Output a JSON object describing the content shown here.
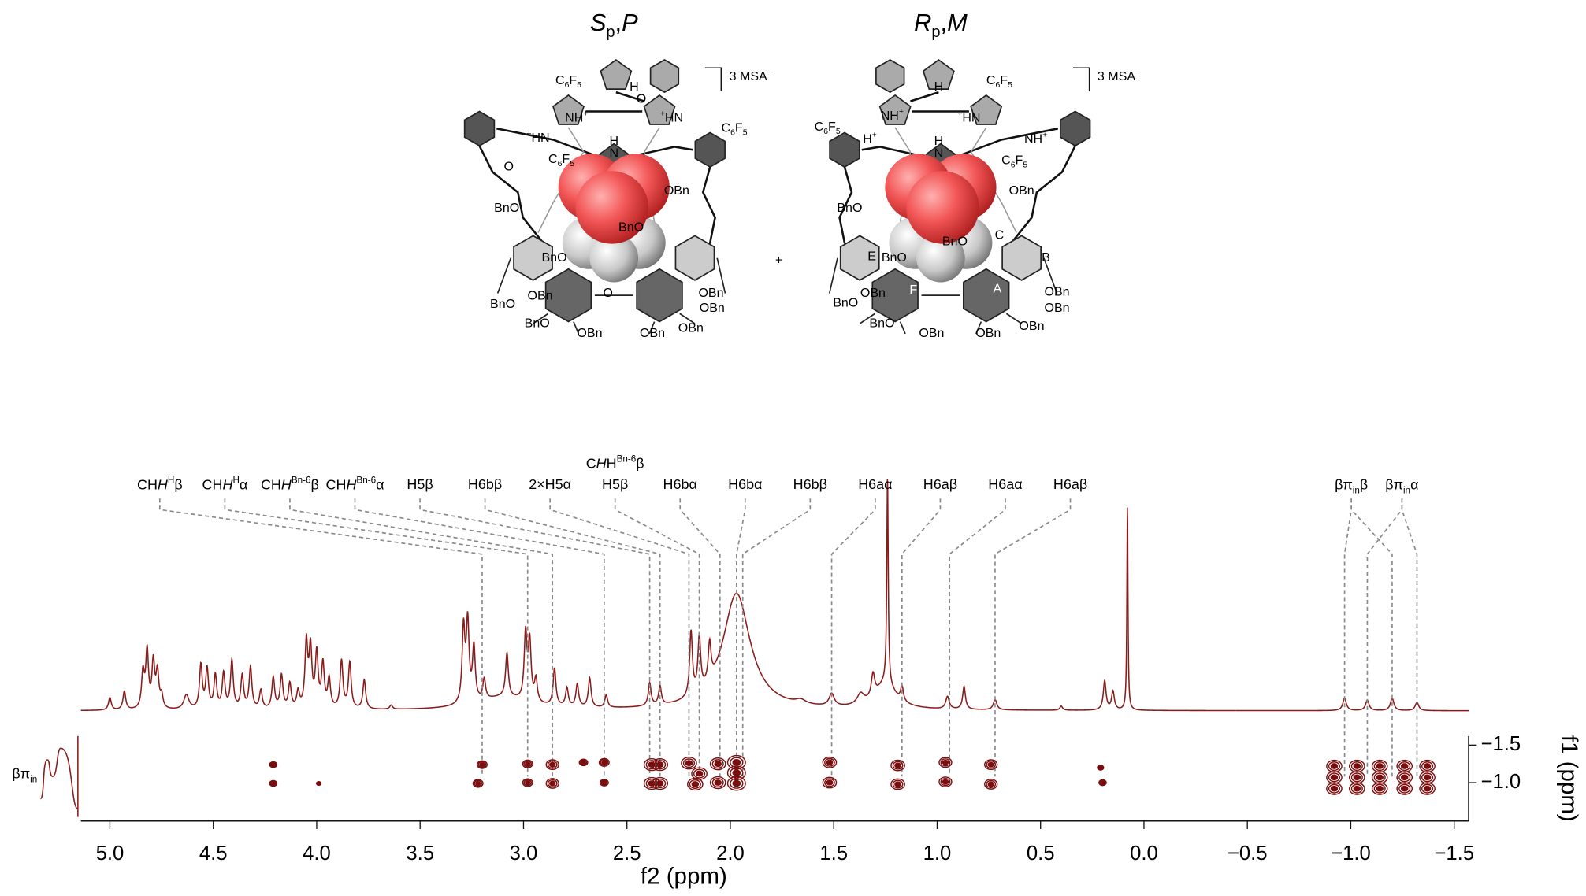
{
  "structures": [
    {
      "title": [
        {
          "text": "S",
          "style": "italic"
        },
        {
          "text": "p",
          "style": "sub"
        },
        {
          "text": ","
        },
        {
          "text": "P",
          "style": "italic"
        }
      ],
      "counterion": [
        {
          "text": "3 MSA"
        },
        {
          "text": "−",
          "style": "sup"
        }
      ],
      "labels": [
        [
          {
            "text": "C"
          },
          {
            "text": "6",
            "style": "sub"
          },
          {
            "text": "F"
          },
          {
            "text": "5",
            "style": "sub"
          }
        ],
        "H",
        [
          {
            "text": "NH"
          },
          {
            "text": "+",
            "style": "sup"
          }
        ],
        [
          {
            "text": "+",
            "style": "sup"
          },
          {
            "text": "HN"
          }
        ],
        [
          {
            "text": "C"
          },
          {
            "text": "6",
            "style": "sub"
          },
          {
            "text": "F"
          },
          {
            "text": "5",
            "style": "sub"
          }
        ],
        [
          {
            "text": "+",
            "style": "sup"
          },
          {
            "text": "HN"
          }
        ],
        "H",
        "N",
        [
          {
            "text": "C"
          },
          {
            "text": "6",
            "style": "sub"
          },
          {
            "text": "F"
          },
          {
            "text": "5",
            "style": "sub"
          }
        ],
        "OBn",
        "BnO",
        "BnO",
        "BnO",
        "OBn",
        "BnO",
        "OBn",
        "OBn",
        "BnO",
        "OBn",
        "OBn",
        "OBn",
        "O",
        "O",
        "O"
      ]
    },
    {
      "title": [
        {
          "text": "R",
          "style": "italic"
        },
        {
          "text": "p",
          "style": "sub"
        },
        {
          "text": ","
        },
        {
          "text": "M",
          "style": "italic"
        }
      ],
      "counterion": [
        {
          "text": "3 MSA"
        },
        {
          "text": "−",
          "style": "sup"
        }
      ],
      "labels": [
        [
          {
            "text": "C"
          },
          {
            "text": "6",
            "style": "sub"
          },
          {
            "text": "F"
          },
          {
            "text": "5",
            "style": "sub"
          }
        ],
        "H",
        [
          {
            "text": "NH"
          },
          {
            "text": "+",
            "style": "sup"
          }
        ],
        [
          {
            "text": "+",
            "style": "sup"
          },
          {
            "text": "HN"
          }
        ],
        [
          {
            "text": "C"
          },
          {
            "text": "6",
            "style": "sub"
          },
          {
            "text": "F"
          },
          {
            "text": "5",
            "style": "sub"
          }
        ],
        [
          {
            "text": "H"
          },
          {
            "text": "+",
            "style": "sup"
          }
        ],
        "H",
        "N",
        [
          {
            "text": "C"
          },
          {
            "text": "6",
            "style": "sub"
          },
          {
            "text": "F"
          },
          {
            "text": "5",
            "style": "sub"
          }
        ],
        [
          {
            "text": "NH"
          },
          {
            "text": "+",
            "style": "sup"
          }
        ],
        "OBn",
        "BnO",
        "BnO",
        "BnO",
        "C",
        "E",
        "B",
        "F",
        "A",
        "OBn",
        "BnO",
        "OBn",
        "OBn",
        "BnO",
        "OBn",
        "OBn",
        "OBn"
      ]
    }
  ],
  "plus": "+",
  "chart_data": {
    "type": "nmr",
    "xlabel": "f2 (ppm)",
    "ylabel": "f1 (ppm)",
    "xlim": [
      5.14,
      -1.57
    ],
    "xticks": [
      {
        "value": 5,
        "label": "5.0"
      },
      {
        "value": 4.5,
        "label": "4.5"
      },
      {
        "value": 4,
        "label": "4.0"
      },
      {
        "value": 3.5,
        "label": "3.5"
      },
      {
        "value": 3,
        "label": "3.0"
      },
      {
        "value": 2.5,
        "label": "2.5"
      },
      {
        "value": 2,
        "label": "2.0"
      },
      {
        "value": 1.5,
        "label": "1.5"
      },
      {
        "value": 1,
        "label": "1.0"
      },
      {
        "value": 0.5,
        "label": "0.5"
      },
      {
        "value": 0,
        "label": "0.0"
      },
      {
        "value": -0.5,
        "label": "−0.5"
      },
      {
        "value": -1,
        "label": "−1.0"
      },
      {
        "value": -1.5,
        "label": "−1.5"
      }
    ],
    "ylim": [
      -1.62,
      -0.49
    ],
    "yticks": [
      {
        "value": -1.5,
        "label": "−1.5"
      },
      {
        "value": -1,
        "label": "−1.0"
      }
    ],
    "projection_label": [
      {
        "text": "βπ"
      },
      {
        "text": "in",
        "style": "sub"
      }
    ],
    "spectrum": {
      "color": "#8b1a1a",
      "x": [
        5.0,
        4.93,
        4.84,
        4.82,
        4.79,
        4.77,
        4.75,
        4.63,
        4.56,
        4.53,
        4.49,
        4.45,
        4.41,
        4.36,
        4.32,
        4.27,
        4.21,
        4.17,
        4.13,
        4.09,
        4.05,
        4.03,
        4.0,
        3.97,
        3.94,
        3.88,
        3.84,
        3.77,
        3.64,
        3.29,
        3.27,
        3.24,
        3.19,
        3.1,
        3.08,
        2.99,
        2.97,
        2.94,
        2.85,
        2.79,
        2.74,
        2.68,
        2.6,
        2.39,
        2.34,
        2.19,
        2.15,
        2.1,
        1.97,
        1.66,
        1.51,
        1.37,
        1.31,
        1.25,
        1.24,
        1.17,
        0.95,
        0.87,
        0.72,
        0.4,
        0.19,
        0.15,
        0.08,
        -0.97,
        -1.08,
        -1.2,
        -1.32
      ],
      "values": [
        6,
        9,
        17,
        27,
        22,
        17,
        6,
        7,
        21,
        19,
        16,
        17,
        23,
        16,
        20,
        9,
        15,
        16,
        12,
        8,
        31,
        28,
        26,
        21,
        14,
        23,
        22,
        14,
        2,
        36,
        38,
        26,
        10,
        6,
        21,
        32,
        28,
        11,
        18,
        9,
        11,
        14,
        6,
        11,
        9,
        31,
        26,
        18,
        56,
        2,
        6,
        5,
        11,
        12,
        100,
        7,
        6,
        11,
        5,
        2,
        14,
        9,
        100,
        6,
        5,
        6,
        4
      ],
      "widths": [
        0.008,
        0.008,
        0.008,
        0.008,
        0.008,
        0.008,
        0.008,
        0.015,
        0.008,
        0.008,
        0.008,
        0.008,
        0.008,
        0.008,
        0.008,
        0.008,
        0.008,
        0.008,
        0.008,
        0.008,
        0.008,
        0.008,
        0.008,
        0.008,
        0.008,
        0.008,
        0.008,
        0.008,
        0.008,
        0.008,
        0.008,
        0.008,
        0.008,
        0.15,
        0.008,
        0.008,
        0.008,
        0.008,
        0.008,
        0.008,
        0.008,
        0.008,
        0.008,
        0.008,
        0.008,
        0.008,
        0.008,
        0.008,
        0.08,
        0.03,
        0.015,
        0.02,
        0.01,
        0.06,
        0.004,
        0.008,
        0.01,
        0.008,
        0.01,
        0.008,
        0.008,
        0.008,
        0.003,
        0.01,
        0.01,
        0.01,
        0.01
      ]
    },
    "cross_peaks": {
      "color": "#7a0e0e",
      "x": [
        4.21,
        4.21,
        3.99,
        3.2,
        3.22,
        2.98,
        2.98,
        2.86,
        2.86,
        2.71,
        2.61,
        2.61,
        2.38,
        2.38,
        2.34,
        2.34,
        2.2,
        2.15,
        2.17,
        2.06,
        2.06,
        1.97,
        1.97,
        1.97,
        1.52,
        1.52,
        1.19,
        1.19,
        0.96,
        0.96,
        0.74,
        0.74,
        0.21,
        0.2,
        -0.92,
        -1.03,
        -1.14,
        -1.26,
        -1.37,
        -0.92,
        -1.03,
        -1.14,
        -1.26,
        -1.37,
        -0.92,
        -1.03,
        -1.14,
        -1.26,
        -1.37
      ],
      "y": [
        -1.24,
        -0.99,
        -0.99,
        -1.24,
        -0.99,
        -1.25,
        -1.0,
        -1.24,
        -0.99,
        -1.27,
        -1.27,
        -1.0,
        -1.24,
        -0.99,
        -1.24,
        -0.99,
        -1.26,
        -1.12,
        -0.98,
        -1.25,
        -1.0,
        -1.27,
        -1.13,
        -0.99,
        -1.27,
        -1.0,
        -1.23,
        -0.98,
        -1.27,
        -1.01,
        -1.24,
        -0.98,
        -1.2,
        -1.0,
        -1.22,
        -1.22,
        -1.22,
        -1.22,
        -1.22,
        -1.07,
        -1.07,
        -1.07,
        -1.07,
        -1.07,
        -0.92,
        -0.92,
        -0.92,
        -0.92,
        -0.92
      ],
      "sizes": [
        1,
        1,
        0.5,
        1.5,
        1.5,
        1.5,
        1.5,
        2,
        2,
        1.2,
        1.5,
        1.2,
        2.5,
        2.5,
        2.5,
        2.5,
        2.5,
        2.5,
        2.5,
        2.5,
        2.5,
        3,
        3,
        3,
        2.2,
        2.2,
        2.2,
        2.2,
        2,
        2,
        2,
        2,
        0.8,
        1,
        2.5,
        2.5,
        2.5,
        2.5,
        2.5,
        2.5,
        2.5,
        2.5,
        2.5,
        2.5,
        2.5,
        2.5,
        2.5,
        2.5,
        2.5
      ]
    },
    "assignments": [
      {
        "label": [
          {
            "text": "CH"
          },
          {
            "text": "H",
            "style": "italic"
          },
          {
            "text": "H",
            "style": "sup"
          },
          {
            "text": "β"
          }
        ],
        "ppm": [
          3.2
        ]
      },
      {
        "label": [
          {
            "text": "CH"
          },
          {
            "text": "H",
            "style": "italic"
          },
          {
            "text": "H",
            "style": "sup"
          },
          {
            "text": "α"
          }
        ],
        "ppm": [
          2.98
        ]
      },
      {
        "label": [
          {
            "text": "CH"
          },
          {
            "text": "H",
            "style": "italic"
          },
          {
            "text": "Bn-6",
            "style": "sup"
          },
          {
            "text": "β"
          }
        ],
        "ppm": [
          2.86
        ]
      },
      {
        "label": [
          {
            "text": "CH"
          },
          {
            "text": "H",
            "style": "italic"
          },
          {
            "text": "Bn-6",
            "style": "sup"
          },
          {
            "text": "α"
          }
        ],
        "ppm": [
          2.61
        ]
      },
      {
        "label": "H5β",
        "ppm": [
          2.39
        ]
      },
      {
        "label": "H6bβ",
        "ppm": [
          2.34
        ]
      },
      {
        "label": "2×H5α",
        "ppm": [
          2.2
        ]
      },
      {
        "label_above": [
          {
            "text": "C"
          },
          {
            "text": "H",
            "style": "italic"
          },
          {
            "text": "H"
          },
          {
            "text": "Bn-6",
            "style": "sup"
          },
          {
            "text": "β"
          }
        ],
        "label": "H5β",
        "ppm": [
          2.15
        ]
      },
      {
        "label": "H6bα",
        "ppm": [
          2.05
        ]
      },
      {
        "label": "H6bα",
        "ppm": [
          1.97
        ]
      },
      {
        "label": "H6bβ",
        "ppm": [
          1.94
        ]
      },
      {
        "label": "H6aα",
        "ppm": [
          1.51
        ]
      },
      {
        "label": "H6aβ",
        "ppm": [
          1.17
        ]
      },
      {
        "label": "H6aα",
        "ppm": [
          0.94
        ]
      },
      {
        "label": "H6aβ",
        "ppm": [
          0.72
        ]
      },
      {
        "label": [
          {
            "text": "βπ"
          },
          {
            "text": "in",
            "style": "sub"
          },
          {
            "text": "β"
          }
        ],
        "ppm": [
          -0.97,
          -1.2
        ]
      },
      {
        "label": [
          {
            "text": "βπ"
          },
          {
            "text": "in",
            "style": "sub"
          },
          {
            "text": "α"
          }
        ],
        "ppm": [
          -1.08,
          -1.32
        ]
      }
    ]
  }
}
